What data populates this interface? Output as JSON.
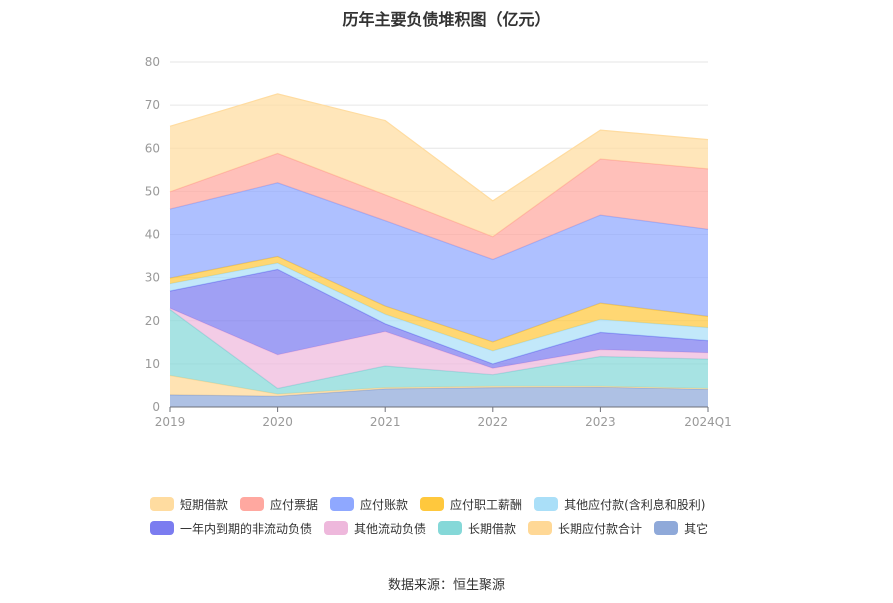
{
  "chart_data": {
    "type": "area",
    "stacked": true,
    "title": "历年主要负债堆积图（亿元）",
    "categories": [
      "2019",
      "2020",
      "2021",
      "2022",
      "2023",
      "2024Q1"
    ],
    "ylim": [
      0,
      80
    ],
    "yticks": [
      "0",
      "10",
      "20",
      "30",
      "40",
      "50",
      "60",
      "70",
      "80"
    ],
    "grid": true,
    "legend_position": "bottom",
    "series": [
      {
        "name": "其它",
        "color": "#8fa9d9",
        "values": [
          2.8,
          2.5,
          4.2,
          4.5,
          4.6,
          4.1
        ]
      },
      {
        "name": "长期应付款合计",
        "color": "#ffd896",
        "values": [
          4.5,
          0.5,
          0.3,
          0.3,
          0.2,
          0.2
        ]
      },
      {
        "name": "长期借款",
        "color": "#85d8d8",
        "values": [
          15.3,
          1.3,
          5.0,
          2.7,
          6.9,
          6.8
        ]
      },
      {
        "name": "其他流动负债",
        "color": "#eeb8dc",
        "values": [
          0.3,
          7.8,
          8.0,
          1.5,
          1.6,
          1.5
        ]
      },
      {
        "name": "一年内到期的非流动负债",
        "color": "#7b7cf0",
        "values": [
          4.0,
          19.8,
          1.8,
          1.0,
          4.0,
          2.8
        ]
      },
      {
        "name": "其他应付款(含利息和股利)",
        "color": "#aadff8",
        "values": [
          1.7,
          1.5,
          2.2,
          3.0,
          3.0,
          3.0
        ]
      },
      {
        "name": "应付职工薪酬",
        "color": "#ffc83d",
        "values": [
          1.3,
          1.5,
          1.9,
          2.1,
          3.8,
          2.6
        ]
      },
      {
        "name": "应付账款",
        "color": "#8fa8ff",
        "values": [
          16.0,
          17.1,
          19.8,
          19.1,
          20.4,
          20.2
        ]
      },
      {
        "name": "应付票据",
        "color": "#ffa8a0",
        "values": [
          4.0,
          6.8,
          6.0,
          5.3,
          13.0,
          14.0
        ]
      },
      {
        "name": "短期借款",
        "color": "#ffdca0",
        "values": [
          15.2,
          13.8,
          17.2,
          8.3,
          6.7,
          6.8
        ]
      }
    ]
  },
  "legend_order": [
    {
      "name": "短期借款",
      "color": "#ffdca0"
    },
    {
      "name": "应付票据",
      "color": "#ffa8a0"
    },
    {
      "name": "应付账款",
      "color": "#8fa8ff"
    },
    {
      "name": "应付职工薪酬",
      "color": "#ffc83d"
    },
    {
      "name": "其他应付款(含利息和股利)",
      "color": "#aadff8"
    },
    {
      "name": "一年内到期的非流动负债",
      "color": "#7b7cf0"
    },
    {
      "name": "其他流动负债",
      "color": "#eeb8dc"
    },
    {
      "name": "长期借款",
      "color": "#85d8d8"
    },
    {
      "name": "长期应付款合计",
      "color": "#ffd896"
    },
    {
      "name": "其它",
      "color": "#8fa9d9"
    }
  ],
  "source_text": "数据来源：恒生聚源"
}
